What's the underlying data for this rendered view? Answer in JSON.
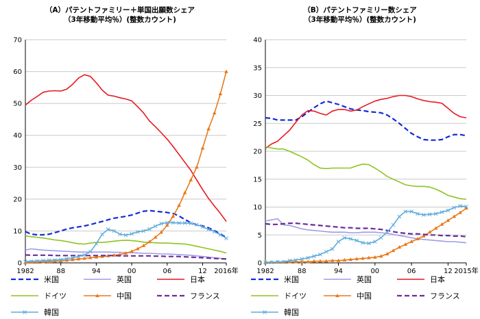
{
  "chart_data": [
    {
      "type": "line",
      "title": "（A）パテントファミリー＋単国出願数シェア",
      "subtitle": "（3年移動平均％）(整数カウント)",
      "ylim": [
        0,
        70
      ],
      "yticks": [
        0,
        10,
        20,
        30,
        40,
        50,
        60,
        70
      ],
      "xlim": [
        1982,
        2016
      ],
      "xticks": [
        1982,
        1988,
        1994,
        2000,
        2006,
        2012,
        2016
      ],
      "xtick_labels": [
        "1982",
        "88",
        "94",
        "00",
        "06",
        "12",
        "2016年"
      ],
      "grid": "horizontal",
      "legend_position": "bottom",
      "x": [
        1982,
        1983,
        1984,
        1985,
        1986,
        1987,
        1988,
        1989,
        1990,
        1991,
        1992,
        1993,
        1994,
        1995,
        1996,
        1997,
        1998,
        1999,
        2000,
        2001,
        2002,
        2003,
        2004,
        2005,
        2006,
        2007,
        2008,
        2009,
        2010,
        2011,
        2012,
        2013,
        2014,
        2015,
        2016
      ],
      "series": [
        {
          "name": "米国",
          "color": "#1428d8",
          "dash": "dash",
          "marker": "none",
          "values": [
            9.8,
            9.0,
            8.8,
            8.8,
            9.0,
            9.5,
            10.0,
            10.6,
            11.0,
            11.3,
            11.6,
            12.0,
            12.5,
            13.0,
            13.5,
            14.0,
            14.3,
            14.6,
            15.0,
            15.6,
            16.2,
            16.4,
            16.2,
            16.0,
            15.8,
            15.5,
            14.7,
            13.6,
            12.6,
            11.9,
            11.6,
            11.0,
            10.1,
            9.0,
            8.0
          ]
        },
        {
          "name": "英国",
          "color": "#9c9ce8",
          "dash": "solid",
          "marker": "none",
          "values": [
            4.0,
            4.4,
            4.2,
            4.0,
            3.9,
            3.8,
            3.7,
            3.6,
            3.5,
            3.4,
            3.4,
            3.4,
            3.4,
            3.4,
            3.4,
            3.3,
            3.3,
            3.2,
            3.2,
            3.1,
            3.0,
            3.0,
            2.9,
            2.8,
            2.8,
            2.7,
            2.6,
            2.5,
            2.4,
            2.2,
            2.0,
            1.8,
            1.6,
            1.4,
            1.3
          ]
        },
        {
          "name": "日本",
          "color": "#e8161c",
          "dash": "solid",
          "marker": "none",
          "values": [
            49.5,
            51.0,
            52.2,
            53.5,
            53.9,
            54.0,
            53.9,
            54.5,
            56.0,
            58.0,
            59.0,
            58.5,
            56.5,
            54.2,
            52.6,
            52.3,
            51.8,
            51.4,
            50.8,
            49.0,
            47.0,
            44.5,
            42.7,
            40.8,
            38.8,
            36.5,
            34.0,
            31.5,
            29.0,
            26.0,
            23.0,
            20.2,
            17.8,
            15.5,
            13.0
          ]
        },
        {
          "name": "ドイツ",
          "color": "#8cc41e",
          "dash": "solid",
          "marker": "none",
          "values": [
            8.5,
            8.2,
            8.0,
            7.8,
            7.5,
            7.2,
            7.0,
            6.7,
            6.3,
            6.0,
            5.9,
            6.2,
            6.4,
            6.4,
            6.6,
            6.8,
            7.0,
            7.1,
            7.0,
            6.8,
            6.5,
            6.4,
            6.3,
            6.2,
            6.2,
            6.1,
            6.0,
            5.9,
            5.6,
            5.2,
            4.8,
            4.4,
            4.0,
            3.6,
            3.1
          ]
        },
        {
          "name": "中国",
          "color": "#e87818",
          "dash": "solid",
          "marker": "triangle",
          "values": [
            0.1,
            0.2,
            0.2,
            0.3,
            0.4,
            0.5,
            0.6,
            0.8,
            1.0,
            1.2,
            1.4,
            1.6,
            1.8,
            2.0,
            2.2,
            2.4,
            2.6,
            3.0,
            3.6,
            4.4,
            5.4,
            6.6,
            8.0,
            9.6,
            11.8,
            14.6,
            18.0,
            22.0,
            26.0,
            30.0,
            36.0,
            42.0,
            47.0,
            53.0,
            60.0
          ]
        },
        {
          "name": "フランス",
          "color": "#6a2a98",
          "dash": "dash",
          "marker": "none",
          "values": [
            2.5,
            2.4,
            2.4,
            2.4,
            2.4,
            2.3,
            2.3,
            2.3,
            2.3,
            2.3,
            2.3,
            2.3,
            2.3,
            2.3,
            2.3,
            2.3,
            2.2,
            2.2,
            2.2,
            2.2,
            2.2,
            2.2,
            2.1,
            2.1,
            2.0,
            2.0,
            2.0,
            1.9,
            1.8,
            1.7,
            1.6,
            1.5,
            1.4,
            1.3,
            1.2
          ]
        },
        {
          "name": "韓国",
          "color": "#5eaadc",
          "dash": "solid",
          "marker": "x",
          "values": [
            0.4,
            0.5,
            0.6,
            0.7,
            0.8,
            0.9,
            1.0,
            1.3,
            1.6,
            2.0,
            2.5,
            3.5,
            6.0,
            9.0,
            10.5,
            10.0,
            9.0,
            8.7,
            9.1,
            9.7,
            10.0,
            10.6,
            11.5,
            12.3,
            12.6,
            12.6,
            12.5,
            12.5,
            12.4,
            12.0,
            11.3,
            10.5,
            9.8,
            8.8,
            7.7
          ]
        }
      ]
    },
    {
      "type": "line",
      "title": "（B）パテントファミリー数シェア",
      "subtitle": "（3年移動平均％）(整数カウント)",
      "ylim": [
        0,
        40
      ],
      "yticks": [
        0,
        5,
        10,
        15,
        20,
        25,
        30,
        35,
        40
      ],
      "xlim": [
        1982,
        2015
      ],
      "xticks": [
        1982,
        1988,
        1994,
        2000,
        2006,
        2012,
        2015
      ],
      "xtick_labels": [
        "1982",
        "88",
        "94",
        "00",
        "06",
        "12",
        "2015年"
      ],
      "grid": "horizontal",
      "legend_position": "bottom",
      "x": [
        1982,
        1983,
        1984,
        1985,
        1986,
        1987,
        1988,
        1989,
        1990,
        1991,
        1992,
        1993,
        1994,
        1995,
        1996,
        1997,
        1998,
        1999,
        2000,
        2001,
        2002,
        2003,
        2004,
        2005,
        2006,
        2007,
        2008,
        2009,
        2010,
        2011,
        2012,
        2013,
        2014,
        2015
      ],
      "series": [
        {
          "name": "米国",
          "color": "#1428d8",
          "dash": "dash",
          "marker": "none",
          "values": [
            26.0,
            25.9,
            25.6,
            25.6,
            25.6,
            25.6,
            26.2,
            27.0,
            27.8,
            28.5,
            29.0,
            28.7,
            28.4,
            28.0,
            27.6,
            27.4,
            27.3,
            27.1,
            27.0,
            26.9,
            26.5,
            25.8,
            25.0,
            24.1,
            23.2,
            22.6,
            22.1,
            22.0,
            22.0,
            22.1,
            22.6,
            23.0,
            23.0,
            22.8
          ]
        },
        {
          "name": "英国",
          "color": "#9c9ce8",
          "dash": "solid",
          "marker": "none",
          "values": [
            7.5,
            7.7,
            7.9,
            6.8,
            6.7,
            6.4,
            6.1,
            5.9,
            5.8,
            5.7,
            5.6,
            5.5,
            5.5,
            5.5,
            5.4,
            5.4,
            5.5,
            5.5,
            5.5,
            5.4,
            5.3,
            5.1,
            4.9,
            4.7,
            4.5,
            4.3,
            4.2,
            4.1,
            4.0,
            3.9,
            3.8,
            3.8,
            3.7,
            3.6
          ]
        },
        {
          "name": "日本",
          "color": "#e8161c",
          "dash": "solid",
          "marker": "none",
          "values": [
            20.5,
            21.3,
            21.8,
            22.8,
            23.8,
            25.2,
            26.5,
            27.3,
            27.2,
            26.8,
            26.5,
            27.2,
            27.5,
            27.5,
            27.2,
            27.4,
            28.0,
            28.5,
            29.0,
            29.3,
            29.5,
            29.8,
            30.0,
            30.0,
            29.8,
            29.4,
            29.1,
            28.9,
            28.8,
            28.6,
            27.7,
            26.8,
            26.2,
            26.0
          ]
        },
        {
          "name": "ドイツ",
          "color": "#8cc41e",
          "dash": "solid",
          "marker": "none",
          "values": [
            20.8,
            20.6,
            20.4,
            20.4,
            20.0,
            19.5,
            19.0,
            18.4,
            17.6,
            17.0,
            16.9,
            17.0,
            17.0,
            17.0,
            17.0,
            17.4,
            17.7,
            17.6,
            17.0,
            16.3,
            15.5,
            15.0,
            14.5,
            14.0,
            13.8,
            13.7,
            13.7,
            13.6,
            13.2,
            12.7,
            12.1,
            11.8,
            11.5,
            11.4
          ]
        },
        {
          "name": "中国",
          "color": "#e87818",
          "dash": "solid",
          "marker": "triangle",
          "values": [
            0.1,
            0.1,
            0.1,
            0.1,
            0.2,
            0.2,
            0.2,
            0.2,
            0.3,
            0.3,
            0.3,
            0.4,
            0.4,
            0.5,
            0.6,
            0.7,
            0.8,
            0.9,
            1.0,
            1.2,
            1.6,
            2.2,
            2.8,
            3.3,
            3.8,
            4.3,
            4.8,
            5.5,
            6.2,
            6.9,
            7.6,
            8.3,
            9.0,
            9.8
          ]
        },
        {
          "name": "フランス",
          "color": "#6a2a98",
          "dash": "dash",
          "marker": "none",
          "values": [
            7.0,
            6.9,
            6.9,
            7.0,
            7.1,
            7.1,
            7.0,
            6.9,
            6.8,
            6.7,
            6.6,
            6.5,
            6.4,
            6.3,
            6.3,
            6.2,
            6.2,
            6.2,
            6.1,
            6.0,
            5.8,
            5.6,
            5.4,
            5.3,
            5.2,
            5.2,
            5.1,
            5.0,
            5.0,
            4.9,
            4.9,
            4.8,
            4.8,
            4.7
          ]
        },
        {
          "name": "韓国",
          "color": "#5eaadc",
          "dash": "solid",
          "marker": "x",
          "values": [
            0.1,
            0.1,
            0.2,
            0.2,
            0.4,
            0.5,
            0.7,
            0.9,
            1.2,
            1.5,
            2.0,
            2.5,
            3.8,
            4.5,
            4.3,
            4.0,
            3.6,
            3.5,
            3.8,
            4.5,
            5.5,
            6.8,
            8.3,
            9.2,
            9.2,
            8.8,
            8.6,
            8.7,
            8.8,
            9.1,
            9.4,
            9.9,
            10.2,
            10.1
          ]
        }
      ]
    }
  ]
}
